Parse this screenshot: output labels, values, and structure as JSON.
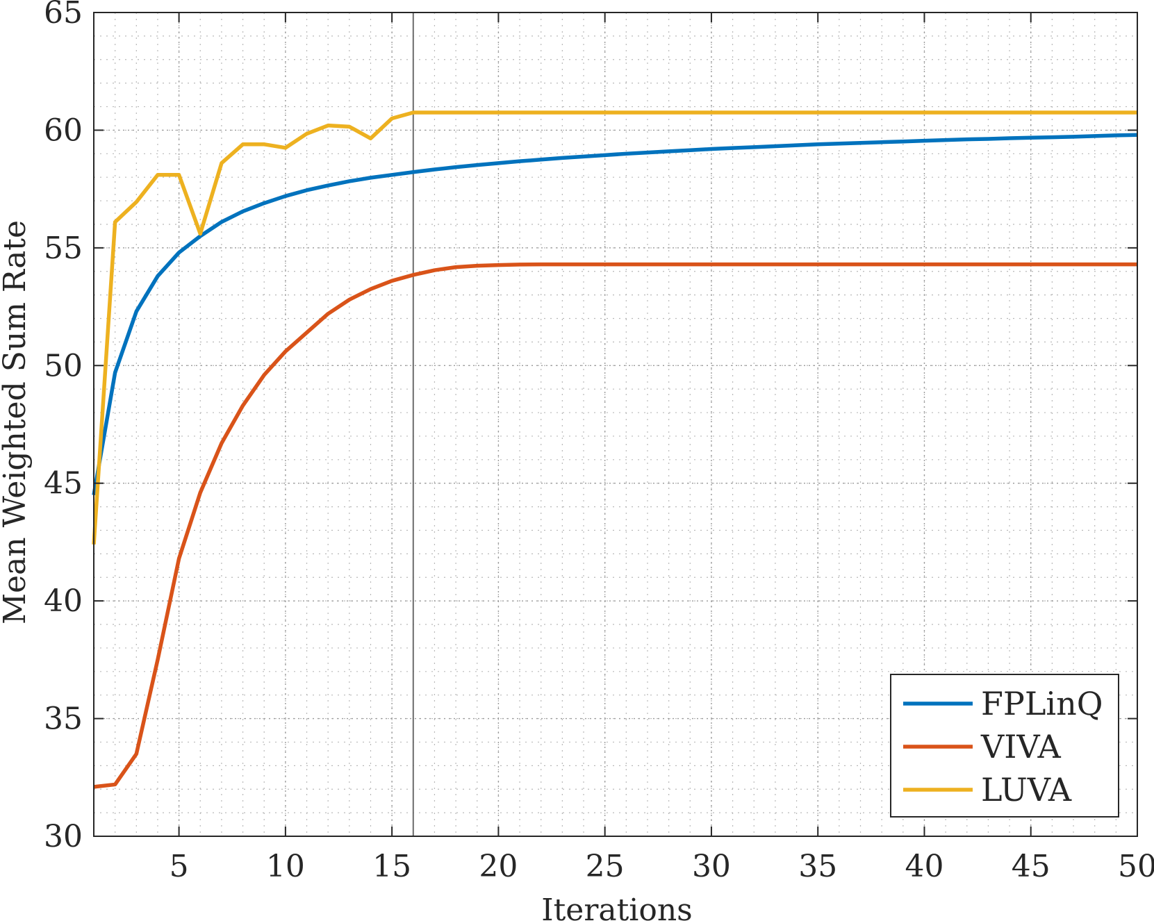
{
  "chart_data": {
    "type": "line",
    "title": "",
    "xlabel": "Iterations",
    "ylabel": "Mean Weighted Sum Rate",
    "xlim": [
      1,
      50
    ],
    "ylim": [
      30,
      65
    ],
    "xticks": [
      5,
      10,
      15,
      20,
      25,
      30,
      35,
      40,
      45,
      50
    ],
    "yticks": [
      30,
      35,
      40,
      45,
      50,
      55,
      60,
      65
    ],
    "grid": true,
    "minor_grid": true,
    "vertical_marker_x": 16,
    "legend_position": "bottom-right",
    "x": [
      1,
      2,
      3,
      4,
      5,
      6,
      7,
      8,
      9,
      10,
      11,
      12,
      13,
      14,
      15,
      16,
      17,
      18,
      19,
      20,
      21,
      22,
      23,
      24,
      25,
      26,
      27,
      28,
      29,
      30,
      31,
      32,
      33,
      34,
      35,
      36,
      37,
      38,
      39,
      40,
      41,
      42,
      43,
      44,
      45,
      46,
      47,
      48,
      49,
      50
    ],
    "series": [
      {
        "name": "FPLinQ",
        "color": "#0072BD",
        "values": [
          44.5,
          49.7,
          52.3,
          53.8,
          54.8,
          55.5,
          56.1,
          56.55,
          56.9,
          57.2,
          57.45,
          57.65,
          57.83,
          57.98,
          58.1,
          58.22,
          58.33,
          58.43,
          58.52,
          58.6,
          58.68,
          58.75,
          58.82,
          58.88,
          58.94,
          59.0,
          59.05,
          59.1,
          59.15,
          59.2,
          59.24,
          59.28,
          59.32,
          59.36,
          59.4,
          59.43,
          59.46,
          59.49,
          59.52,
          59.55,
          59.58,
          59.61,
          59.63,
          59.66,
          59.68,
          59.7,
          59.72,
          59.75,
          59.78,
          59.8
        ]
      },
      {
        "name": "VIVA",
        "color": "#D95319",
        "values": [
          32.1,
          32.2,
          33.5,
          37.5,
          41.8,
          44.6,
          46.7,
          48.3,
          49.6,
          50.6,
          51.4,
          52.2,
          52.8,
          53.25,
          53.6,
          53.85,
          54.05,
          54.18,
          54.24,
          54.27,
          54.29,
          54.3,
          54.3,
          54.3,
          54.3,
          54.3,
          54.3,
          54.3,
          54.3,
          54.3,
          54.3,
          54.3,
          54.3,
          54.3,
          54.3,
          54.3,
          54.3,
          54.3,
          54.3,
          54.3,
          54.3,
          54.3,
          54.3,
          54.3,
          54.3,
          54.3,
          54.3,
          54.3,
          54.3,
          54.3
        ]
      },
      {
        "name": "LUVA",
        "color": "#EDB120",
        "values": [
          42.4,
          56.1,
          56.95,
          58.1,
          58.1,
          55.6,
          58.6,
          59.4,
          59.4,
          59.25,
          59.85,
          60.2,
          60.15,
          59.65,
          60.5,
          60.75,
          60.75,
          60.75,
          60.75,
          60.75,
          60.75,
          60.75,
          60.75,
          60.75,
          60.75,
          60.75,
          60.75,
          60.75,
          60.75,
          60.75,
          60.75,
          60.75,
          60.75,
          60.75,
          60.75,
          60.75,
          60.75,
          60.75,
          60.75,
          60.75,
          60.75,
          60.75,
          60.75,
          60.75,
          60.75,
          60.75,
          60.75,
          60.75,
          60.75,
          60.75
        ]
      }
    ]
  }
}
